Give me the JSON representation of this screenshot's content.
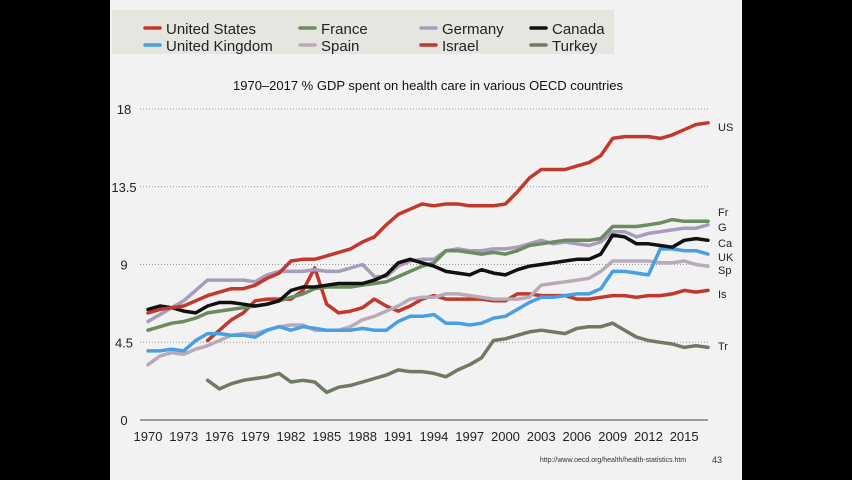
{
  "slide": {
    "footer_url": "http://www.oecd.org/health/health-statistics.htm",
    "page_number": "43"
  },
  "chart_data": {
    "type": "line",
    "title": "1970–2017 % GDP spent on health care in various OECD countries",
    "xlabel": "",
    "ylabel": "",
    "xlim": [
      1970,
      2017
    ],
    "ylim": [
      0,
      18
    ],
    "yticks": [
      0,
      4.5,
      9,
      13.5,
      18
    ],
    "ytick_labels": [
      "0",
      "4.5",
      "9",
      "13.5",
      "18"
    ],
    "xticks": [
      1970,
      1973,
      1976,
      1979,
      1982,
      1985,
      1988,
      1991,
      1994,
      1997,
      2000,
      2003,
      2006,
      2009,
      2012,
      2015
    ],
    "xtick_labels": [
      "1970",
      "1973",
      "1976",
      "1979",
      "1982",
      "1985",
      "1988",
      "1991",
      "1994",
      "1997",
      "2000",
      "2003",
      "2006",
      "2009",
      "2012",
      "2015"
    ],
    "grid": "horizontal dotted",
    "legend_position": "top",
    "series": [
      {
        "name": "United States",
        "color": "#c0392b",
        "end_label": "US",
        "x": [
          1970,
          1971,
          1972,
          1973,
          1974,
          1975,
          1976,
          1977,
          1978,
          1979,
          1980,
          1981,
          1982,
          1983,
          1984,
          1985,
          1986,
          1987,
          1988,
          1989,
          1990,
          1991,
          1992,
          1993,
          1994,
          1995,
          1996,
          1997,
          1998,
          1999,
          2000,
          2001,
          2002,
          2003,
          2004,
          2005,
          2006,
          2007,
          2008,
          2009,
          2010,
          2011,
          2012,
          2013,
          2014,
          2015,
          2016,
          2017
        ],
        "y": [
          6.2,
          6.4,
          6.5,
          6.6,
          6.9,
          7.2,
          7.4,
          7.6,
          7.6,
          7.8,
          8.2,
          8.5,
          9.2,
          9.3,
          9.3,
          9.5,
          9.7,
          9.9,
          10.3,
          10.6,
          11.3,
          11.9,
          12.2,
          12.5,
          12.4,
          12.5,
          12.5,
          12.4,
          12.4,
          12.4,
          12.5,
          13.2,
          14.0,
          14.5,
          14.5,
          14.5,
          14.7,
          14.9,
          15.3,
          16.3,
          16.4,
          16.4,
          16.4,
          16.3,
          16.5,
          16.8,
          17.1,
          17.2
        ]
      },
      {
        "name": "United Kingdom",
        "color": "#4a9fe3",
        "end_label": "UK",
        "x": [
          1970,
          1971,
          1972,
          1973,
          1974,
          1975,
          1976,
          1977,
          1978,
          1979,
          1980,
          1981,
          1982,
          1983,
          1984,
          1985,
          1986,
          1987,
          1988,
          1989,
          1990,
          1991,
          1992,
          1993,
          1994,
          1995,
          1996,
          1997,
          1998,
          1999,
          2000,
          2001,
          2002,
          2003,
          2004,
          2005,
          2006,
          2007,
          2008,
          2009,
          2010,
          2011,
          2012,
          2013,
          2014,
          2015,
          2016,
          2017
        ],
        "y": [
          4.0,
          4.0,
          4.1,
          4.0,
          4.6,
          5.0,
          5.0,
          4.9,
          4.9,
          4.8,
          5.2,
          5.4,
          5.2,
          5.4,
          5.3,
          5.2,
          5.2,
          5.2,
          5.3,
          5.2,
          5.2,
          5.7,
          6.0,
          6.0,
          6.1,
          5.6,
          5.6,
          5.5,
          5.6,
          5.9,
          6.0,
          6.4,
          6.8,
          7.1,
          7.1,
          7.2,
          7.3,
          7.3,
          7.6,
          8.6,
          8.6,
          8.5,
          8.4,
          9.9,
          9.9,
          9.8,
          9.8,
          9.6
        ]
      },
      {
        "name": "France",
        "color": "#6b8c5e",
        "end_label": "Fr",
        "x": [
          1970,
          1971,
          1972,
          1973,
          1974,
          1975,
          1976,
          1977,
          1978,
          1979,
          1980,
          1981,
          1982,
          1983,
          1984,
          1985,
          1986,
          1987,
          1988,
          1989,
          1990,
          1991,
          1992,
          1993,
          1994,
          1995,
          1996,
          1997,
          1998,
          1999,
          2000,
          2001,
          2002,
          2003,
          2004,
          2005,
          2006,
          2007,
          2008,
          2009,
          2010,
          2011,
          2012,
          2013,
          2014,
          2015,
          2016,
          2017
        ],
        "y": [
          5.2,
          5.4,
          5.6,
          5.7,
          5.9,
          6.2,
          6.3,
          6.4,
          6.5,
          6.6,
          6.7,
          6.9,
          7.1,
          7.3,
          7.6,
          7.7,
          7.7,
          7.7,
          7.8,
          7.9,
          8.0,
          8.3,
          8.6,
          8.9,
          9.1,
          9.8,
          9.8,
          9.7,
          9.6,
          9.7,
          9.6,
          9.8,
          10.1,
          10.2,
          10.3,
          10.4,
          10.4,
          10.4,
          10.5,
          11.2,
          11.2,
          11.2,
          11.3,
          11.4,
          11.6,
          11.5,
          11.5,
          11.5
        ]
      },
      {
        "name": "Spain",
        "color": "#b8aab8",
        "end_label": "Sp",
        "x": [
          1970,
          1971,
          1972,
          1973,
          1974,
          1975,
          1976,
          1977,
          1978,
          1979,
          1980,
          1981,
          1982,
          1983,
          1984,
          1985,
          1986,
          1987,
          1988,
          1989,
          1990,
          1991,
          1992,
          1993,
          1994,
          1995,
          1996,
          1997,
          1998,
          1999,
          2000,
          2001,
          2002,
          2003,
          2004,
          2005,
          2006,
          2007,
          2008,
          2009,
          2010,
          2011,
          2012,
          2013,
          2014,
          2015,
          2016,
          2017
        ],
        "y": [
          3.2,
          3.7,
          3.9,
          3.8,
          4.1,
          4.3,
          4.6,
          4.9,
          5.0,
          5.0,
          5.2,
          5.4,
          5.5,
          5.5,
          5.2,
          5.2,
          5.2,
          5.4,
          5.8,
          6.0,
          6.3,
          6.6,
          7.0,
          7.1,
          7.1,
          7.3,
          7.3,
          7.2,
          7.1,
          7.0,
          7.0,
          7.0,
          7.1,
          7.8,
          7.9,
          8.0,
          8.1,
          8.2,
          8.6,
          9.2,
          9.2,
          9.2,
          9.2,
          9.1,
          9.1,
          9.2,
          9.0,
          8.9
        ]
      },
      {
        "name": "Germany",
        "color": "#a89cbc",
        "end_label": "G",
        "x": [
          1970,
          1971,
          1972,
          1973,
          1974,
          1975,
          1976,
          1977,
          1978,
          1979,
          1980,
          1981,
          1982,
          1983,
          1984,
          1985,
          1986,
          1987,
          1988,
          1989,
          1990,
          1991,
          1992,
          1993,
          1994,
          1995,
          1996,
          1997,
          1998,
          1999,
          2000,
          2001,
          2002,
          2003,
          2004,
          2005,
          2006,
          2007,
          2008,
          2009,
          2010,
          2011,
          2012,
          2013,
          2014,
          2015,
          2016,
          2017
        ],
        "y": [
          5.7,
          6.1,
          6.5,
          6.9,
          7.5,
          8.1,
          8.1,
          8.1,
          8.1,
          8.0,
          8.4,
          8.6,
          8.6,
          8.6,
          8.7,
          8.6,
          8.6,
          8.8,
          9.0,
          8.3,
          8.3,
          8.9,
          9.2,
          9.3,
          9.3,
          9.8,
          9.9,
          9.8,
          9.8,
          9.9,
          9.9,
          10.0,
          10.2,
          10.4,
          10.2,
          10.3,
          10.2,
          10.1,
          10.3,
          10.9,
          10.9,
          10.6,
          10.8,
          10.9,
          11.0,
          11.1,
          11.1,
          11.3
        ]
      },
      {
        "name": "Israel",
        "color": "#c0392b",
        "end_label": "Is",
        "x": [
          1975,
          1976,
          1977,
          1978,
          1979,
          1980,
          1981,
          1982,
          1983,
          1984,
          1985,
          1986,
          1987,
          1988,
          1989,
          1990,
          1991,
          1992,
          1993,
          1994,
          1995,
          1996,
          1997,
          1998,
          1999,
          2000,
          2001,
          2002,
          2003,
          2004,
          2005,
          2006,
          2007,
          2008,
          2009,
          2010,
          2011,
          2012,
          2013,
          2014,
          2015,
          2016,
          2017
        ],
        "y": [
          4.6,
          5.2,
          5.8,
          6.2,
          6.9,
          7.0,
          7.0,
          7.0,
          7.5,
          8.8,
          6.7,
          6.2,
          6.3,
          6.5,
          7.0,
          6.6,
          6.3,
          6.6,
          7.0,
          7.2,
          7.0,
          7.0,
          7.0,
          7.0,
          6.9,
          6.9,
          7.3,
          7.3,
          7.2,
          7.2,
          7.2,
          7.0,
          7.0,
          7.1,
          7.2,
          7.2,
          7.1,
          7.2,
          7.2,
          7.3,
          7.5,
          7.4,
          7.5
        ]
      },
      {
        "name": "Canada",
        "color": "#111111",
        "end_label": "Ca",
        "x": [
          1970,
          1971,
          1972,
          1973,
          1974,
          1975,
          1976,
          1977,
          1978,
          1979,
          1980,
          1981,
          1982,
          1983,
          1984,
          1985,
          1986,
          1987,
          1988,
          1989,
          1990,
          1991,
          1992,
          1993,
          1994,
          1995,
          1996,
          1997,
          1998,
          1999,
          2000,
          2001,
          2002,
          2003,
          2004,
          2005,
          2006,
          2007,
          2008,
          2009,
          2010,
          2011,
          2012,
          2013,
          2014,
          2015,
          2016,
          2017
        ],
        "y": [
          6.4,
          6.6,
          6.5,
          6.3,
          6.2,
          6.6,
          6.8,
          6.8,
          6.7,
          6.6,
          6.7,
          6.9,
          7.5,
          7.7,
          7.7,
          7.8,
          7.9,
          7.9,
          7.9,
          8.1,
          8.4,
          9.1,
          9.3,
          9.1,
          8.9,
          8.6,
          8.5,
          8.4,
          8.7,
          8.5,
          8.4,
          8.7,
          8.9,
          9.0,
          9.1,
          9.2,
          9.3,
          9.3,
          9.6,
          10.7,
          10.6,
          10.2,
          10.2,
          10.1,
          10.0,
          10.4,
          10.5,
          10.4
        ]
      },
      {
        "name": "Turkey",
        "color": "#6e7a63",
        "end_label": "Tr",
        "x": [
          1975,
          1976,
          1977,
          1978,
          1979,
          1980,
          1981,
          1982,
          1983,
          1984,
          1985,
          1986,
          1987,
          1988,
          1989,
          1990,
          1991,
          1992,
          1993,
          1994,
          1995,
          1996,
          1997,
          1998,
          1999,
          2000,
          2001,
          2002,
          2003,
          2004,
          2005,
          2006,
          2007,
          2008,
          2009,
          2010,
          2011,
          2012,
          2013,
          2014,
          2015,
          2016,
          2017
        ],
        "y": [
          2.3,
          1.8,
          2.1,
          2.3,
          2.4,
          2.5,
          2.7,
          2.2,
          2.3,
          2.2,
          1.6,
          1.9,
          2.0,
          2.2,
          2.4,
          2.6,
          2.9,
          2.8,
          2.8,
          2.7,
          2.5,
          2.9,
          3.2,
          3.6,
          4.6,
          4.7,
          4.9,
          5.1,
          5.2,
          5.1,
          5.0,
          5.3,
          5.4,
          5.4,
          5.6,
          5.2,
          4.8,
          4.6,
          4.5,
          4.4,
          4.2,
          4.3,
          4.2
        ]
      }
    ]
  }
}
